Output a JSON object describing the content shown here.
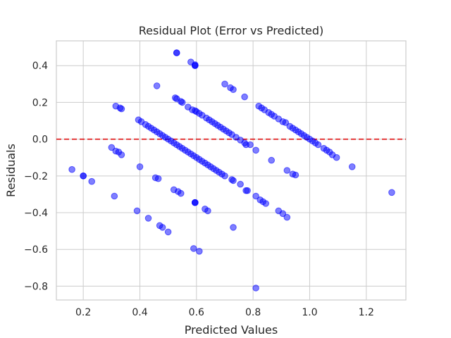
{
  "chart_data": {
    "type": "scatter",
    "title": "Residual Plot (Error vs Predicted)",
    "xlabel": "Predicted Values",
    "ylabel": "Residuals",
    "xlim": [
      0.105,
      1.34
    ],
    "ylim": [
      -0.875,
      0.535
    ],
    "x_ticks": [
      0.2,
      0.4,
      0.6,
      0.8,
      1.0,
      1.2
    ],
    "x_tick_labels": [
      "0.2",
      "0.4",
      "0.6",
      "0.8",
      "1.0",
      "1.2"
    ],
    "y_ticks": [
      -0.8,
      -0.6,
      -0.4,
      -0.2,
      0.0,
      0.2,
      0.4
    ],
    "y_tick_labels": [
      "−0.8",
      "−0.6",
      "−0.4",
      "−0.2",
      "0.0",
      "0.2",
      "0.4"
    ],
    "grid": true,
    "point_color": "#0000ff",
    "reference_line": {
      "y": 0.0,
      "color": "#dd0000",
      "style": "dashed"
    },
    "points": [
      [
        0.53,
        0.47
      ],
      [
        0.53,
        0.47
      ],
      [
        0.58,
        0.42
      ],
      [
        0.595,
        0.405
      ],
      [
        0.595,
        0.4
      ],
      [
        0.595,
        0.4
      ],
      [
        0.7,
        0.3
      ],
      [
        0.72,
        0.28
      ],
      [
        0.73,
        0.27
      ],
      [
        0.46,
        0.29
      ],
      [
        0.77,
        0.23
      ],
      [
        0.315,
        0.18
      ],
      [
        0.33,
        0.17
      ],
      [
        0.335,
        0.165
      ],
      [
        0.525,
        0.225
      ],
      [
        0.53,
        0.22
      ],
      [
        0.545,
        0.205
      ],
      [
        0.55,
        0.2
      ],
      [
        0.57,
        0.175
      ],
      [
        0.585,
        0.16
      ],
      [
        0.595,
        0.155
      ],
      [
        0.6,
        0.15
      ],
      [
        0.61,
        0.14
      ],
      [
        0.62,
        0.13
      ],
      [
        0.635,
        0.115
      ],
      [
        0.645,
        0.105
      ],
      [
        0.655,
        0.095
      ],
      [
        0.665,
        0.085
      ],
      [
        0.675,
        0.075
      ],
      [
        0.685,
        0.065
      ],
      [
        0.695,
        0.055
      ],
      [
        0.705,
        0.045
      ],
      [
        0.715,
        0.035
      ],
      [
        0.725,
        0.025
      ],
      [
        0.74,
        0.01
      ],
      [
        0.755,
        -0.005
      ],
      [
        0.77,
        -0.02
      ],
      [
        0.775,
        -0.03
      ],
      [
        0.82,
        0.18
      ],
      [
        0.83,
        0.17
      ],
      [
        0.84,
        0.16
      ],
      [
        0.855,
        0.145
      ],
      [
        0.865,
        0.135
      ],
      [
        0.875,
        0.125
      ],
      [
        0.89,
        0.11
      ],
      [
        0.905,
        0.095
      ],
      [
        0.915,
        0.09
      ],
      [
        0.93,
        0.07
      ],
      [
        0.94,
        0.06
      ],
      [
        0.95,
        0.05
      ],
      [
        0.96,
        0.04
      ],
      [
        0.97,
        0.03
      ],
      [
        0.98,
        0.02
      ],
      [
        0.99,
        0.01
      ],
      [
        1.0,
        0.0
      ],
      [
        1.01,
        -0.01
      ],
      [
        1.02,
        -0.02
      ],
      [
        1.03,
        -0.03
      ],
      [
        1.05,
        -0.05
      ],
      [
        1.06,
        -0.06
      ],
      [
        1.07,
        -0.07
      ],
      [
        1.08,
        -0.085
      ],
      [
        1.095,
        -0.1
      ],
      [
        1.15,
        -0.15
      ],
      [
        0.395,
        0.105
      ],
      [
        0.405,
        0.095
      ],
      [
        0.42,
        0.08
      ],
      [
        0.43,
        0.07
      ],
      [
        0.44,
        0.06
      ],
      [
        0.45,
        0.05
      ],
      [
        0.46,
        0.04
      ],
      [
        0.47,
        0.03
      ],
      [
        0.48,
        0.02
      ],
      [
        0.49,
        0.01
      ],
      [
        0.5,
        0.0
      ],
      [
        0.51,
        -0.01
      ],
      [
        0.52,
        -0.02
      ],
      [
        0.53,
        -0.03
      ],
      [
        0.54,
        -0.04
      ],
      [
        0.55,
        -0.05
      ],
      [
        0.56,
        -0.06
      ],
      [
        0.57,
        -0.07
      ],
      [
        0.58,
        -0.08
      ],
      [
        0.59,
        -0.09
      ],
      [
        0.6,
        -0.1
      ],
      [
        0.61,
        -0.11
      ],
      [
        0.62,
        -0.12
      ],
      [
        0.63,
        -0.13
      ],
      [
        0.64,
        -0.14
      ],
      [
        0.65,
        -0.15
      ],
      [
        0.66,
        -0.16
      ],
      [
        0.67,
        -0.17
      ],
      [
        0.68,
        -0.18
      ],
      [
        0.69,
        -0.19
      ],
      [
        0.7,
        -0.2
      ],
      [
        0.725,
        -0.22
      ],
      [
        0.73,
        -0.225
      ],
      [
        0.755,
        -0.245
      ],
      [
        0.775,
        -0.28
      ],
      [
        0.81,
        -0.31
      ],
      [
        0.825,
        -0.33
      ],
      [
        0.835,
        -0.34
      ],
      [
        0.845,
        -0.35
      ],
      [
        0.89,
        -0.39
      ],
      [
        0.905,
        -0.405
      ],
      [
        0.92,
        -0.425
      ],
      [
        0.81,
        -0.06
      ],
      [
        0.79,
        -0.03
      ],
      [
        0.865,
        -0.115
      ],
      [
        0.92,
        -0.17
      ],
      [
        0.94,
        -0.19
      ],
      [
        0.95,
        -0.195
      ],
      [
        0.16,
        -0.165
      ],
      [
        0.2,
        -0.2
      ],
      [
        0.2,
        -0.2
      ],
      [
        0.23,
        -0.23
      ],
      [
        0.31,
        -0.31
      ],
      [
        0.3,
        -0.045
      ],
      [
        0.315,
        -0.065
      ],
      [
        0.325,
        -0.07
      ],
      [
        0.335,
        -0.085
      ],
      [
        0.4,
        -0.15
      ],
      [
        0.455,
        -0.21
      ],
      [
        0.465,
        -0.215
      ],
      [
        0.52,
        -0.275
      ],
      [
        0.535,
        -0.285
      ],
      [
        0.545,
        -0.295
      ],
      [
        0.595,
        -0.345
      ],
      [
        0.595,
        -0.345
      ],
      [
        0.595,
        -0.345
      ],
      [
        0.63,
        -0.38
      ],
      [
        0.64,
        -0.39
      ],
      [
        0.73,
        -0.48
      ],
      [
        0.78,
        -0.28
      ],
      [
        0.39,
        -0.39
      ],
      [
        0.43,
        -0.43
      ],
      [
        0.47,
        -0.47
      ],
      [
        0.48,
        -0.48
      ],
      [
        0.5,
        -0.505
      ],
      [
        0.59,
        -0.595
      ],
      [
        0.61,
        -0.61
      ],
      [
        0.81,
        -0.81
      ],
      [
        1.29,
        -0.29
      ]
    ]
  }
}
